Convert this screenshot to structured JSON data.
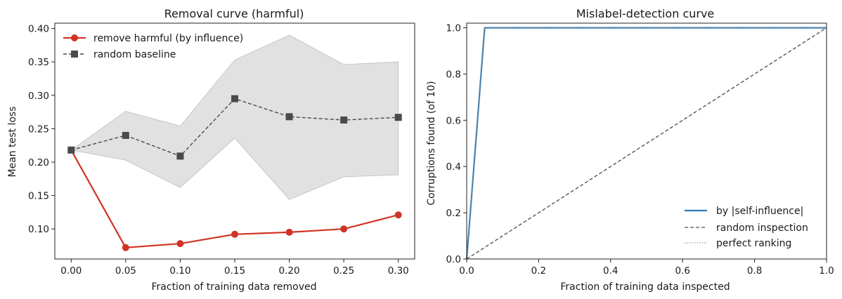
{
  "chart_data": [
    {
      "type": "line",
      "title": "Removal curve (harmful)",
      "xlabel": "Fraction of training data removed",
      "ylabel": "Mean test loss",
      "xlim": [
        -0.015,
        0.315
      ],
      "ylim": [
        0.055,
        0.408
      ],
      "xticks": [
        0.0,
        0.05,
        0.1,
        0.15,
        0.2,
        0.25,
        0.3
      ],
      "xtick_labels": [
        "0.00",
        "0.05",
        "0.10",
        "0.15",
        "0.20",
        "0.25",
        "0.30"
      ],
      "yticks": [
        0.1,
        0.15,
        0.2,
        0.25,
        0.3,
        0.35,
        0.4
      ],
      "ytick_labels": [
        "0.10",
        "0.15",
        "0.20",
        "0.25",
        "0.30",
        "0.35",
        "0.40"
      ],
      "grid": false,
      "legend_position": "upper left",
      "x": [
        0.0,
        0.05,
        0.1,
        0.15,
        0.2,
        0.25,
        0.3
      ],
      "series": [
        {
          "name": "remove harmful (by influence)",
          "color": "#d03424",
          "marker": "circle",
          "linestyle": "solid",
          "values": [
            0.218,
            0.072,
            0.078,
            0.092,
            0.095,
            0.1,
            0.121
          ]
        },
        {
          "name": "random baseline",
          "color": "#4a4a4a",
          "marker": "square",
          "linestyle": "dashed",
          "values": [
            0.218,
            0.24,
            0.209,
            0.295,
            0.268,
            0.263,
            0.267
          ]
        }
      ],
      "band": {
        "color": "#c8c8c8",
        "upper": [
          0.218,
          0.276,
          0.254,
          0.353,
          0.39,
          0.346,
          0.35
        ],
        "lower": [
          0.218,
          0.203,
          0.162,
          0.236,
          0.144,
          0.178,
          0.181
        ]
      }
    },
    {
      "type": "line",
      "title": "Mislabel-detection curve",
      "xlabel": "Fraction of training data inspected",
      "ylabel": "Corruptions found (of 10)",
      "xlim": [
        0.0,
        1.0
      ],
      "ylim": [
        0.0,
        1.02
      ],
      "xticks": [
        0.0,
        0.2,
        0.4,
        0.6,
        0.8,
        1.0
      ],
      "xtick_labels": [
        "0.0",
        "0.2",
        "0.4",
        "0.6",
        "0.8",
        "1.0"
      ],
      "yticks": [
        0.0,
        0.2,
        0.4,
        0.6,
        0.8,
        1.0
      ],
      "ytick_labels": [
        "0.0",
        "0.2",
        "0.4",
        "0.6",
        "0.8",
        "1.0"
      ],
      "grid": false,
      "legend_position": "lower right",
      "series": [
        {
          "name": "by |self-influence|",
          "color": "#2f7ab5",
          "linestyle": "solid",
          "x": [
            0.0,
            0.005,
            0.05,
            1.0
          ],
          "y": [
            0.0,
            0.1,
            1.0,
            1.0
          ]
        },
        {
          "name": "random inspection",
          "color": "#555555",
          "linestyle": "dashed",
          "x": [
            0.0,
            1.0
          ],
          "y": [
            0.0,
            1.0
          ]
        },
        {
          "name": "perfect ranking",
          "color": "#999999",
          "linestyle": "dotted",
          "x": [
            0.0,
            0.05,
            1.0
          ],
          "y": [
            0.0,
            1.0,
            1.0
          ]
        }
      ]
    }
  ]
}
